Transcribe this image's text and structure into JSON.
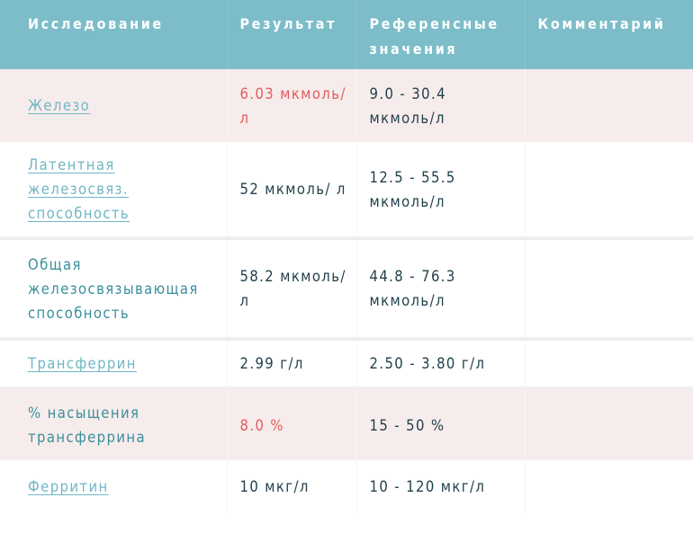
{
  "header": [
    "Исследование",
    "Результат",
    "Референсные значения",
    "Комментарий"
  ],
  "colors": {
    "header_bg": "#7cbdc9",
    "abnormal_row_bg": "#f7ecec",
    "abnormal_value": "#e25d5d",
    "link": "#6fb7c4"
  },
  "rows": [
    {
      "test": "Железо",
      "is_link": true,
      "result": "6.03 мкмоль/л",
      "reference": "9.0 - 30.4 мкмоль/л",
      "comment": "",
      "abnormal": true
    },
    {
      "test": "Латентная железосвяз. способность",
      "is_link": true,
      "result": "52 мкмоль/ л",
      "reference": "12.5 - 55.5 мкмоль/л",
      "comment": "",
      "abnormal": false
    },
    {
      "test": "Общая железосвязывающая способность",
      "is_link": false,
      "result": "58.2 мкмоль/л",
      "reference": "44.8 - 76.3 мкмоль/л",
      "comment": "",
      "abnormal": false
    },
    {
      "test": "Трансферрин",
      "is_link": true,
      "result": "2.99 г/л",
      "reference": "2.50 - 3.80 г/л",
      "comment": "",
      "abnormal": false
    },
    {
      "test": "% насыщения трансферрина",
      "is_link": false,
      "result": "8.0 %",
      "reference": "15 - 50 %",
      "comment": "",
      "abnormal": true
    },
    {
      "test": "Ферритин",
      "is_link": true,
      "result": "10 мкг/л",
      "reference": "10 - 120 мкг/л",
      "comment": "",
      "abnormal": false
    }
  ]
}
